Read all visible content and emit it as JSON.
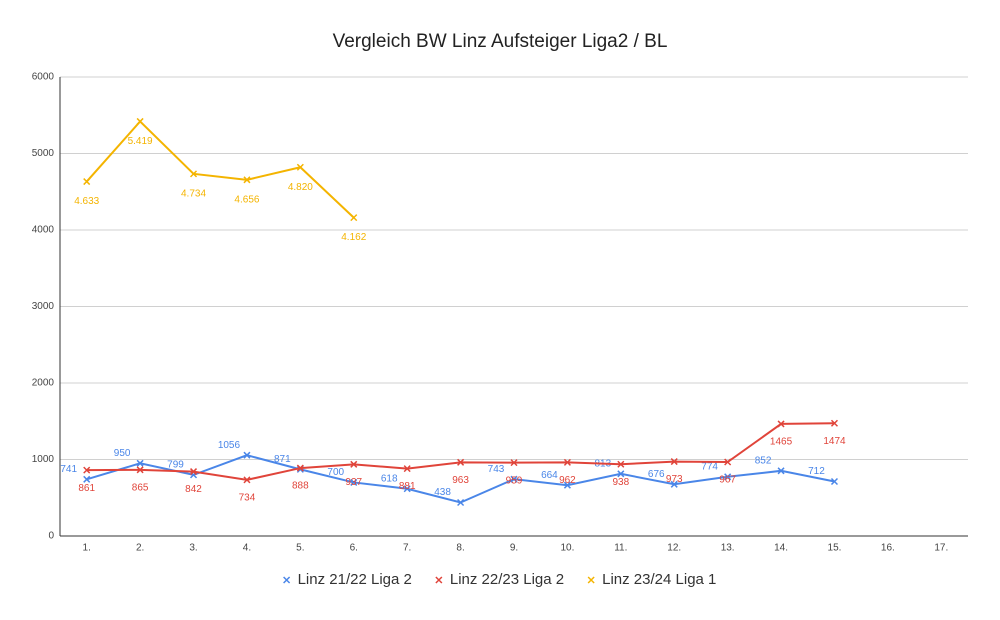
{
  "chart_data": {
    "type": "line",
    "title": "Vergleich BW Linz Aufsteiger Liga2 / BL",
    "categories": [
      "1.",
      "2.",
      "3.",
      "4.",
      "5.",
      "6.",
      "7.",
      "8.",
      "9.",
      "10.",
      "11.",
      "12.",
      "13.",
      "14.",
      "15.",
      "16.",
      "17."
    ],
    "series": [
      {
        "name": "Linz 21/22 Liga 2",
        "color": "#4a86e8",
        "values": [
          741,
          950,
          799,
          1056,
          871,
          700,
          618,
          438,
          743,
          664,
          813,
          676,
          774,
          852,
          712,
          null,
          null
        ]
      },
      {
        "name": "Linz 22/23 Liga 2",
        "color": "#e0443a",
        "values": [
          861,
          865,
          842,
          734,
          888,
          937,
          881,
          963,
          959,
          962,
          938,
          973,
          967,
          1465,
          1474,
          null,
          null
        ]
      },
      {
        "name": "Linz 23/24 Liga 1",
        "color": "#f4b400",
        "values": [
          4633,
          5419,
          4734,
          4656,
          4820,
          4162,
          null,
          null,
          null,
          null,
          null,
          null,
          null,
          null,
          null,
          null,
          null
        ],
        "value_labels": [
          "4.633",
          "5.419",
          "4.734",
          "4.656",
          "4.820",
          "4.162",
          null,
          null,
          null,
          null,
          null,
          null,
          null,
          null,
          null,
          null,
          null
        ]
      }
    ],
    "ylim": [
      0,
      6000
    ],
    "yticks": [
      0,
      1000,
      2000,
      3000,
      4000,
      5000,
      6000
    ],
    "grid": true,
    "legend": "bottom"
  }
}
